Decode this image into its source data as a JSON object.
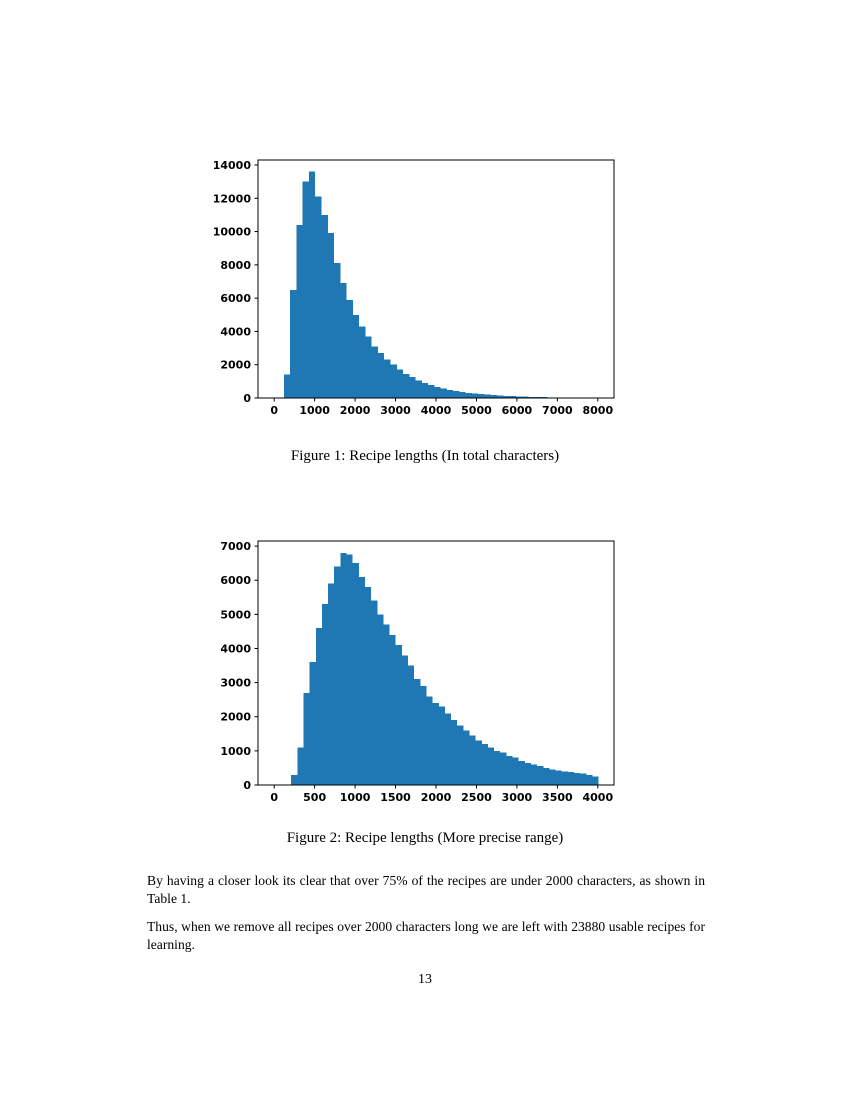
{
  "page": {
    "number": "13"
  },
  "figures": [
    {
      "caption": "Figure 1: Recipe lengths (In total characters)"
    },
    {
      "caption": "Figure 2: Recipe lengths (More precise range)"
    }
  ],
  "paragraphs": [
    "By having a closer look its clear that over 75% of the recipes are under 2000 characters, as shown in Table 1.",
    "Thus, when we remove all recipes over 2000 characters long we are left with 23880 usable recipes for learning."
  ],
  "chart_data": [
    {
      "type": "bar",
      "subtype": "histogram",
      "title": "",
      "xlabel": "",
      "ylabel": "",
      "grid": false,
      "legend": "none",
      "color": "#1f77b4",
      "xlim": [
        -400,
        8400
      ],
      "ylim": [
        0,
        14300
      ],
      "xticks": [
        0,
        1000,
        2000,
        3000,
        4000,
        5000,
        6000,
        7000,
        8000
      ],
      "yticks": [
        0,
        2000,
        4000,
        6000,
        8000,
        10000,
        12000,
        14000
      ],
      "bin_start": 240,
      "bin_width": 155,
      "values": [
        1400,
        6500,
        10400,
        13000,
        13600,
        12100,
        11000,
        9900,
        8100,
        6900,
        5900,
        5000,
        4300,
        3700,
        3100,
        2700,
        2300,
        2000,
        1700,
        1450,
        1250,
        1050,
        900,
        780,
        660,
        560,
        480,
        420,
        360,
        310,
        270,
        230,
        200,
        170,
        150,
        130,
        110,
        95,
        80,
        70,
        60,
        50,
        45,
        40,
        35,
        30,
        25,
        20,
        15,
        10
      ]
    },
    {
      "type": "bar",
      "subtype": "histogram",
      "title": "",
      "xlabel": "",
      "ylabel": "",
      "grid": false,
      "legend": "none",
      "color": "#1f77b4",
      "xlim": [
        -200,
        4200
      ],
      "ylim": [
        0,
        7150
      ],
      "xticks": [
        0,
        500,
        1000,
        1500,
        2000,
        2500,
        3000,
        3500,
        4000
      ],
      "yticks": [
        0,
        1000,
        2000,
        3000,
        4000,
        5000,
        6000,
        7000
      ],
      "bin_start": 210,
      "bin_width": 76,
      "values": [
        300,
        1100,
        2700,
        3600,
        4600,
        5300,
        5900,
        6400,
        6800,
        6750,
        6500,
        6100,
        5800,
        5400,
        5000,
        4700,
        4400,
        4100,
        3800,
        3500,
        3100,
        2900,
        2600,
        2400,
        2300,
        2100,
        1900,
        1750,
        1600,
        1450,
        1300,
        1200,
        1100,
        1000,
        950,
        850,
        800,
        700,
        650,
        600,
        550,
        500,
        450,
        420,
        400,
        380,
        350,
        330,
        300,
        250
      ]
    }
  ]
}
